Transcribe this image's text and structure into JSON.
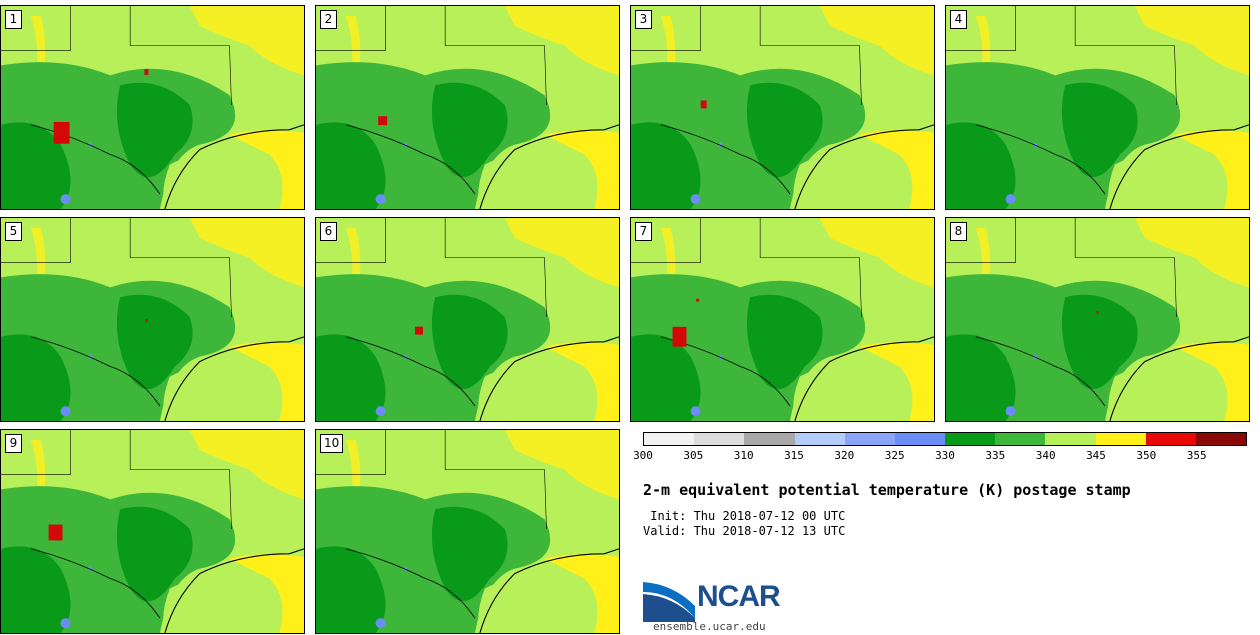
{
  "panels": [
    {
      "label": "1",
      "hot": [
        [
          20,
          82,
          16,
          22
        ],
        [
          48,
          52,
          4,
          6
        ]
      ]
    },
    {
      "label": "2",
      "hot": [
        [
          22,
          76,
          9,
          9
        ]
      ]
    },
    {
      "label": "3",
      "hot": [
        [
          24,
          68,
          6,
          8
        ]
      ]
    },
    {
      "label": "4",
      "hot": []
    },
    {
      "label": "5",
      "hot": [
        [
          48,
          70,
          2,
          3
        ]
      ]
    },
    {
      "label": "6",
      "hot": [
        [
          34,
          75,
          8,
          8
        ]
      ]
    },
    {
      "label": "7",
      "hot": [
        [
          16,
          78,
          14,
          20
        ],
        [
          22,
          60,
          3,
          3
        ]
      ]
    },
    {
      "label": "8",
      "hot": [
        [
          50,
          66,
          2,
          3
        ]
      ]
    },
    {
      "label": "9",
      "hot": [
        [
          18,
          70,
          14,
          16
        ]
      ]
    },
    {
      "label": "10",
      "hot": []
    }
  ],
  "colorbar": {
    "colors": [
      "#f2f2f2",
      "#dcdcdc",
      "#a9a9a9",
      "#b4ccfa",
      "#8aa4fa",
      "#6c8cf8",
      "#0a9a1a",
      "#3db63a",
      "#b8f05a",
      "#fff01a",
      "#e80808",
      "#8b0808"
    ],
    "ticks": [
      "300",
      "305",
      "310",
      "315",
      "320",
      "325",
      "330",
      "335",
      "340",
      "345",
      "350",
      "355"
    ]
  },
  "title": "2-m equivalent potential temperature (K) postage stamp",
  "init": " Init: Thu 2018-07-12 00 UTC",
  "valid": "Valid: Thu 2018-07-12 13 UTC",
  "logo_text": "NCAR",
  "url": "ensemble.ucar.edu"
}
